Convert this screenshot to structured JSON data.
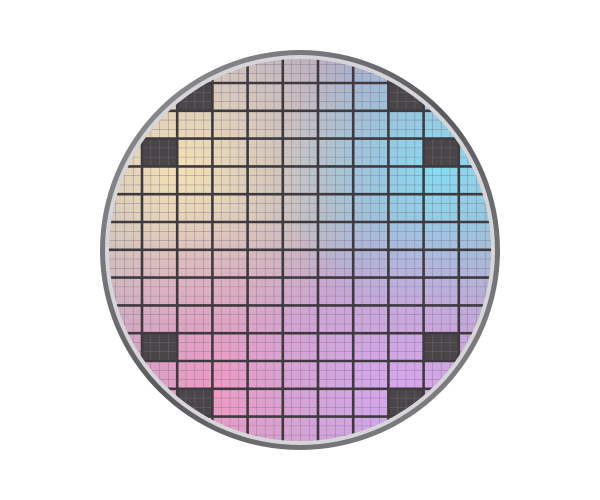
{
  "image": {
    "subject": "silicon-wafer",
    "colors": {
      "background": "#ffffff",
      "rim": "#6e6e72",
      "grid_line": "#3e3a40",
      "dead_die": "#4a4648",
      "tint_top_left": "#f4e2b4",
      "tint_top_right": "#86dcf2",
      "tint_bottom_left": "#f29ac4",
      "tint_bottom_right": "#d9a6ee",
      "tint_center": "#b3a9c4"
    }
  }
}
